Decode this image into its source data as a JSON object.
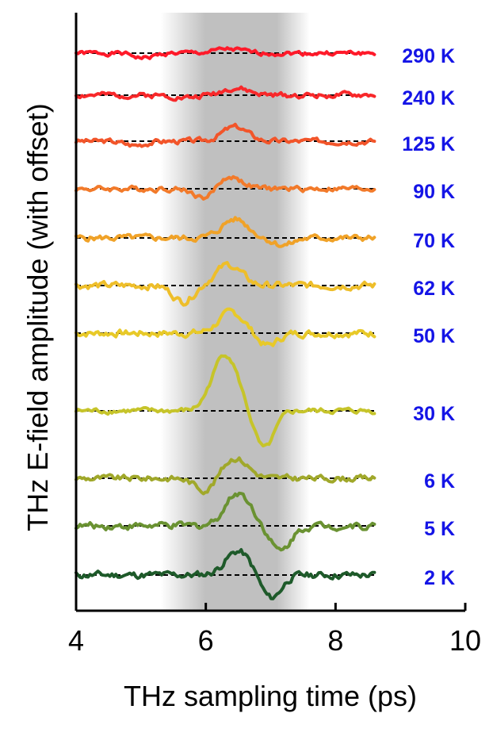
{
  "chart_data": {
    "type": "line",
    "xlabel": "THz sampling time (ps)",
    "ylabel": "THz E-field amplitude (with offset)",
    "xlim": [
      4,
      10
    ],
    "xticks": [
      "4",
      "6",
      "8",
      "10"
    ],
    "x_tick_values": [
      4,
      6,
      8,
      10
    ],
    "yticks": false,
    "grid": false,
    "legend": "none",
    "label_color": "#1414e6",
    "shaded_band": {
      "x_start": 5.3,
      "x_end": 7.6,
      "core_start": 6.0,
      "core_end": 7.1,
      "color": "#c0c0c0"
    },
    "offset_line_style": "dashed",
    "series": [
      {
        "label": "290 K",
        "offset": 67,
        "color": "#ff1a2a",
        "peak_x": 6.35,
        "peak_amp": 5,
        "dip_x": 5.05,
        "dip_amp": -6,
        "noise": 5,
        "seed": 1
      },
      {
        "label": "240 K",
        "offset": 120,
        "color": "#f8282a",
        "peak_x": 6.45,
        "peak_amp": 9,
        "dip_x": 5.7,
        "dip_amp": -3,
        "noise": 6,
        "seed": 2
      },
      {
        "label": "125 K",
        "offset": 178,
        "color": "#f2552a",
        "peak_x": 6.45,
        "peak_amp": 18,
        "dip_x": 4.9,
        "dip_amp": -5,
        "noise": 6,
        "seed": 3
      },
      {
        "label": "90 K",
        "offset": 238,
        "color": "#f27a2a",
        "peak_x": 6.35,
        "peak_amp": 16,
        "dip_x": 6.0,
        "dip_amp": -14,
        "noise": 6,
        "seed": 4
      },
      {
        "label": "70 K",
        "offset": 300,
        "color": "#f0a228",
        "peak_x": 6.45,
        "peak_amp": 24,
        "dip_x": 7.2,
        "dip_amp": -9,
        "noise": 7,
        "seed": 5
      },
      {
        "label": "62 K",
        "offset": 360,
        "color": "#eebe2a",
        "peak_x": 6.35,
        "peak_amp": 26,
        "dip_x": 5.65,
        "dip_amp": -20,
        "noise": 8,
        "seed": 6
      },
      {
        "label": "50 K",
        "offset": 420,
        "color": "#e8c928",
        "peak_x": 6.4,
        "peak_amp": 26,
        "dip_x": 6.95,
        "dip_amp": -16,
        "noise": 8,
        "seed": 7
      },
      {
        "label": "30 K",
        "offset": 518,
        "color": "#c6c42a",
        "peak_x": 6.3,
        "peak_amp": 72,
        "dip_x": 6.9,
        "dip_amp": -48,
        "noise": 6,
        "seed": 8
      },
      {
        "label": "6 K",
        "offset": 603,
        "color": "#a0a82a",
        "peak_x": 6.45,
        "peak_amp": 26,
        "dip_x": 6.0,
        "dip_amp": -16,
        "noise": 7,
        "seed": 9
      },
      {
        "label": "5 K",
        "offset": 663,
        "color": "#6a9232",
        "peak_x": 6.5,
        "peak_amp": 42,
        "dip_x": 7.15,
        "dip_amp": -32,
        "noise": 8,
        "seed": 10
      },
      {
        "label": "2 K",
        "offset": 725,
        "color": "#1e5a2a",
        "peak_x": 6.5,
        "peak_amp": 30,
        "dip_x": 7.0,
        "dip_amp": -30,
        "noise": 8,
        "seed": 11
      }
    ]
  }
}
